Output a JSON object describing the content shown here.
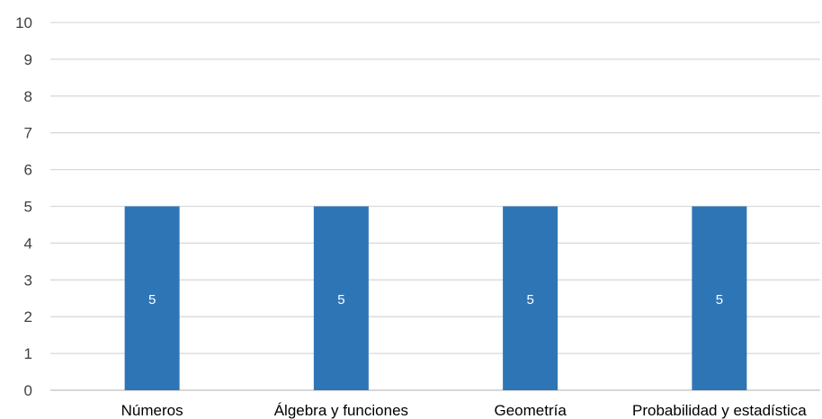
{
  "chart_data": {
    "type": "bar",
    "title": "",
    "xlabel": "",
    "ylabel": "",
    "categories": [
      "Números",
      "Álgebra y funciones",
      "Geometría",
      "Probabilidad y estadística"
    ],
    "series": [
      {
        "values": [
          5,
          5,
          5,
          5
        ],
        "color": "#2e75b6"
      }
    ],
    "ylim": [
      0,
      10
    ],
    "yticks": [
      "0",
      "1",
      "2",
      "3",
      "4",
      "5",
      "6",
      "7",
      "8",
      "9",
      "10"
    ],
    "data_labels": [
      "5",
      "5",
      "5",
      "5"
    ],
    "grid": true,
    "gridline_color": "#d9d9d9",
    "axis_line_color": "#bfbfbf",
    "legend": "none"
  }
}
